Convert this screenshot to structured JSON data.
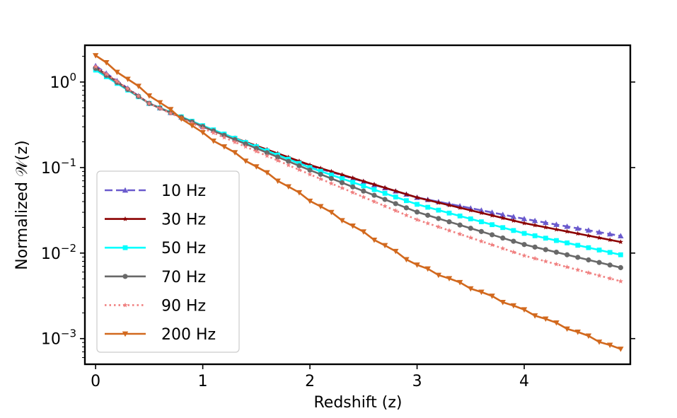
{
  "chart_data": {
    "type": "line",
    "title": "",
    "xlabel": "Redshift (z)",
    "ylabel": "Normalized 𝒲(z)",
    "yscale": "log",
    "xlim": [
      -0.1,
      4.99
    ],
    "ylim_log10": [
      -3.3,
      0.43
    ],
    "x_ticks": [
      0,
      1,
      2,
      3,
      4
    ],
    "y_ticks": [
      {
        "base": "10",
        "exp": "0",
        "log10": 0
      },
      {
        "base": "10",
        "exp": "−1",
        "log10": -1
      },
      {
        "base": "10",
        "exp": "−2",
        "log10": -2
      },
      {
        "base": "10",
        "exp": "−3",
        "log10": -3
      }
    ],
    "legend_position": "lower-left",
    "x_start": 0,
    "x_end": 4.9,
    "x_step": 0.1,
    "series": [
      {
        "name": "10 Hz",
        "color": "#6a5acd",
        "style": "dashed",
        "marker": "triangle-up",
        "log10_knots": [
          [
            0,
            0.19
          ],
          [
            0.5,
            -0.25
          ],
          [
            1,
            -0.52
          ],
          [
            2,
            -0.98
          ],
          [
            3,
            -1.35
          ],
          [
            4,
            -1.6
          ],
          [
            4.9,
            -1.8
          ]
        ]
      },
      {
        "name": "30 Hz",
        "color": "#8b0000",
        "style": "solid",
        "marker": "star",
        "log10_knots": [
          [
            0,
            0.17
          ],
          [
            0.5,
            -0.25
          ],
          [
            1,
            -0.52
          ],
          [
            2,
            -0.97
          ],
          [
            3,
            -1.35
          ],
          [
            4,
            -1.65
          ],
          [
            4.9,
            -1.87
          ]
        ]
      },
      {
        "name": "50 Hz",
        "color": "#00ffff",
        "style": "solid",
        "marker": "square",
        "log10_knots": [
          [
            0,
            0.14
          ],
          [
            0.5,
            -0.25
          ],
          [
            1,
            -0.51
          ],
          [
            2,
            -1.0
          ],
          [
            3,
            -1.43
          ],
          [
            4,
            -1.77
          ],
          [
            4.9,
            -2.02
          ]
        ]
      },
      {
        "name": "70 Hz",
        "color": "#696969",
        "style": "solid",
        "marker": "circle",
        "log10_knots": [
          [
            0,
            0.16
          ],
          [
            0.5,
            -0.25
          ],
          [
            1,
            -0.52
          ],
          [
            2,
            -1.03
          ],
          [
            3,
            -1.52
          ],
          [
            4,
            -1.9
          ],
          [
            4.9,
            -2.17
          ]
        ]
      },
      {
        "name": "90 Hz",
        "color": "#f08080",
        "style": "dotted",
        "marker": "star",
        "log10_knots": [
          [
            0,
            0.18
          ],
          [
            0.5,
            -0.25
          ],
          [
            1,
            -0.54
          ],
          [
            2,
            -1.08
          ],
          [
            3,
            -1.61
          ],
          [
            4,
            -2.03
          ],
          [
            4.9,
            -2.33
          ]
        ]
      },
      {
        "name": "200 Hz",
        "color": "#d2691e",
        "style": "solid",
        "marker": "triangle-down",
        "log10_knots": [
          [
            0,
            0.31
          ],
          [
            0.5,
            -0.15
          ],
          [
            1,
            -0.6
          ],
          [
            2,
            -1.38
          ],
          [
            3,
            -2.14
          ],
          [
            4,
            -2.67
          ],
          [
            4.9,
            -3.13
          ]
        ]
      }
    ]
  }
}
